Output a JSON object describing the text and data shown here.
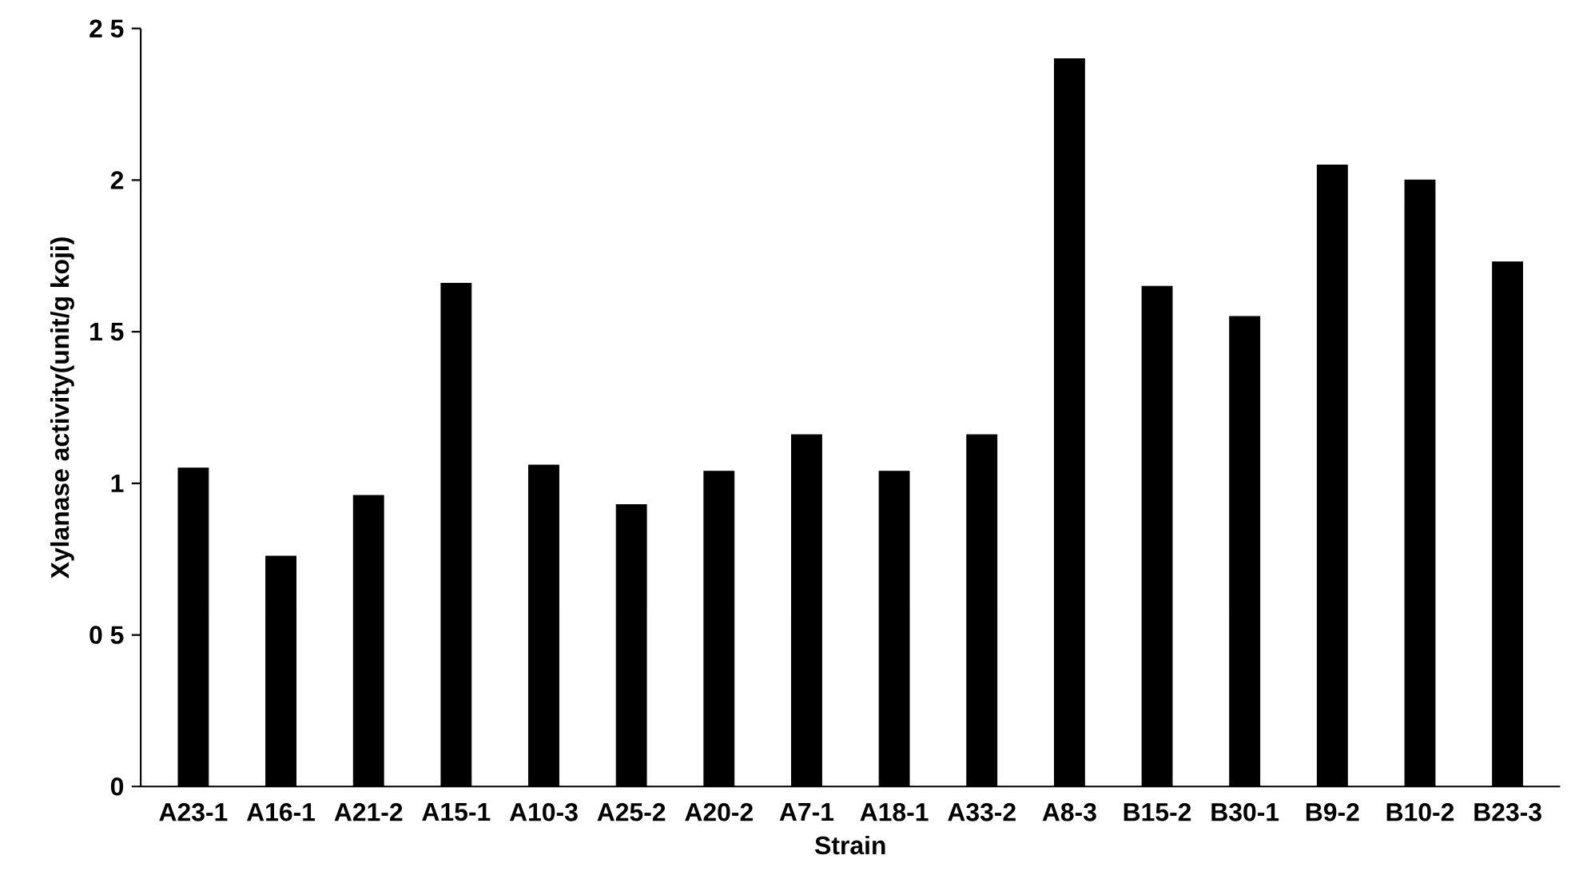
{
  "chart_data": {
    "type": "bar",
    "xlabel": "Strain",
    "ylabel": "Xylanase activity(unit/g koji)",
    "categories": [
      "A23-1",
      "A16-1",
      "A21-2",
      "A15-1",
      "A10-3",
      "A25-2",
      "A20-2",
      "A7-1",
      "A18-1",
      "A33-2",
      "A8-3",
      "B15-2",
      "B30-1",
      "B9-2",
      "B10-2",
      "B23-3"
    ],
    "values": [
      1.05,
      0.76,
      0.96,
      1.66,
      1.06,
      0.93,
      1.04,
      1.16,
      1.04,
      1.16,
      2.4,
      1.65,
      1.55,
      2.05,
      2.0,
      1.73
    ],
    "color": "#000000",
    "ylim": [
      0,
      2.5
    ],
    "yticks": [
      0,
      {
        "value": 0.5,
        "label": "0 5"
      },
      1,
      {
        "value": 1.5,
        "label": "1 5"
      },
      2,
      {
        "value": 2.5,
        "label": "2 5"
      }
    ],
    "grid": false
  }
}
